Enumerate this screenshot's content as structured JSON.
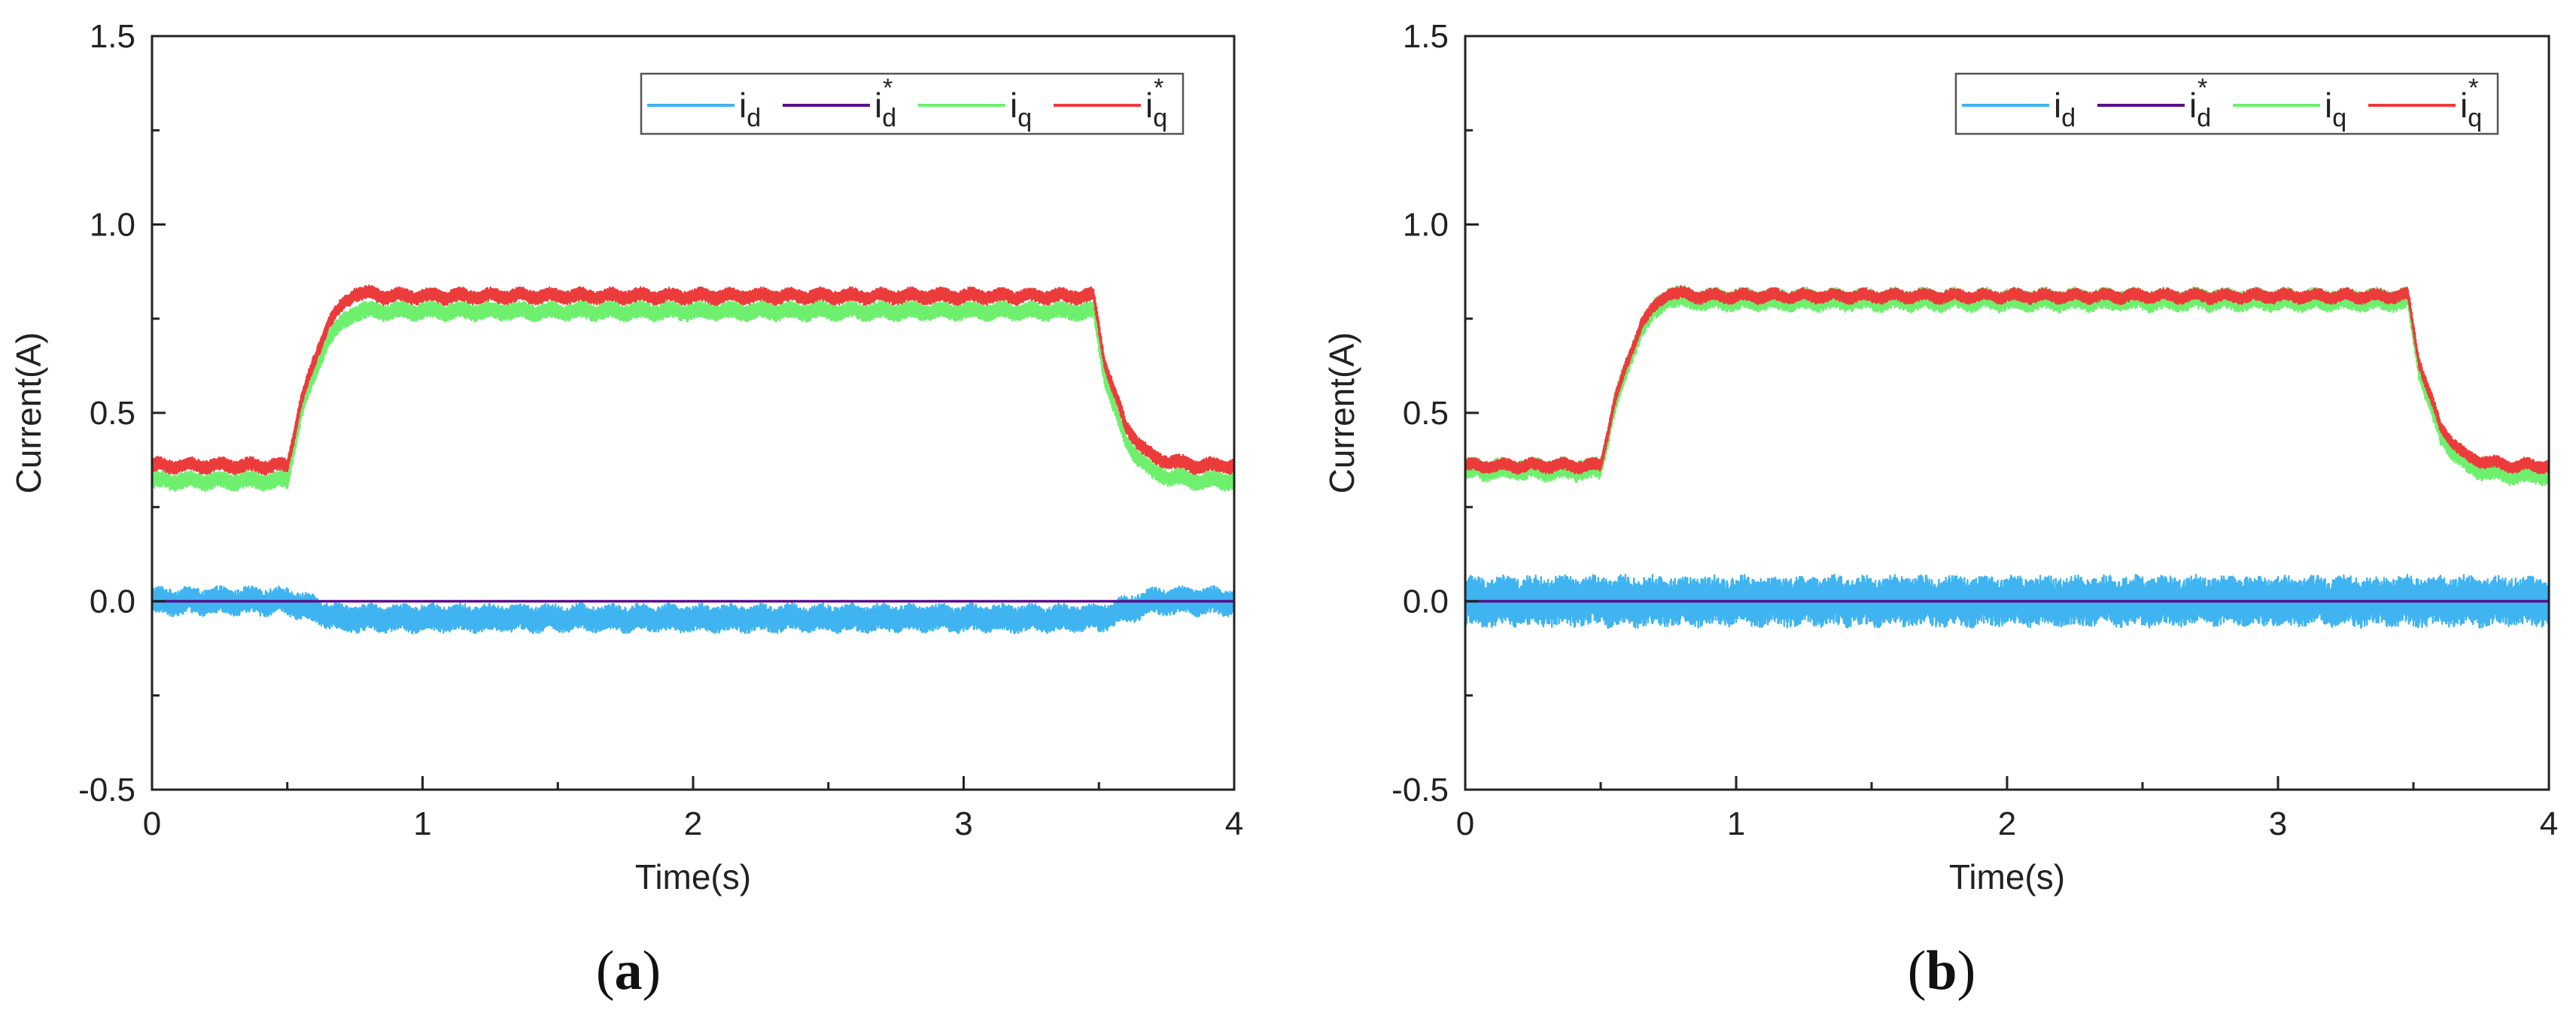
{
  "colors": {
    "id": "#3fb4f0",
    "id_ref": "#5b0f8a",
    "iq": "#6ef06e",
    "iq_ref": "#ec3b3b",
    "axis": "#222222"
  },
  "chart_data": [
    {
      "type": "line",
      "panel_label": {
        "open": "(",
        "letter": "a",
        "close": ")"
      },
      "title": "",
      "xlabel": "Time(s)",
      "ylabel": "Current(A)",
      "xlim": [
        0,
        4
      ],
      "ylim": [
        -0.5,
        1.5
      ],
      "xticks": [
        0,
        1,
        2,
        3,
        4
      ],
      "yticks": [
        -0.5,
        0.0,
        0.5,
        1.0,
        1.5
      ],
      "xtick_labels": [
        "0",
        "1",
        "2",
        "3",
        "4"
      ],
      "ytick_labels": [
        "-0.5",
        "0.0",
        "0.5",
        "1.0",
        "1.5"
      ],
      "legend_position": "top-right",
      "legend": [
        {
          "base": "i",
          "sub": "d",
          "sup": ""
        },
        {
          "base": "i",
          "sub": "d",
          "sup": "*"
        },
        {
          "base": "i",
          "sub": "q",
          "sup": ""
        },
        {
          "base": "i",
          "sub": "q",
          "sup": "*"
        }
      ],
      "series": [
        {
          "name": "i_d",
          "x": [
            0,
            0.5,
            0.7,
            3.5,
            3.7,
            4.0
          ],
          "values": [
            0.0,
            0.0,
            -0.045,
            -0.045,
            0.0,
            0.0
          ],
          "band": 0.035
        },
        {
          "name": "i_d*",
          "x": [
            0,
            4.0
          ],
          "values": [
            0.0,
            0.0
          ],
          "band": 0
        },
        {
          "name": "i_q",
          "x": [
            0,
            0.5,
            0.55,
            0.65,
            0.75,
            0.85,
            3.48,
            3.52,
            3.6,
            3.7,
            3.85,
            4.0
          ],
          "values": [
            0.32,
            0.32,
            0.5,
            0.7,
            0.77,
            0.77,
            0.77,
            0.6,
            0.42,
            0.34,
            0.32,
            0.32
          ],
          "band": 0.022
        },
        {
          "name": "i_q*",
          "x": [
            0,
            0.5,
            0.55,
            0.65,
            0.75,
            0.85,
            3.48,
            3.52,
            3.6,
            3.7,
            3.85,
            4.0
          ],
          "values": [
            0.36,
            0.36,
            0.53,
            0.74,
            0.82,
            0.81,
            0.81,
            0.64,
            0.46,
            0.38,
            0.36,
            0.36
          ],
          "band": 0.018
        }
      ]
    },
    {
      "type": "line",
      "panel_label": {
        "open": "(",
        "letter": "b",
        "close": ")"
      },
      "title": "",
      "xlabel": "Time(s)",
      "ylabel": "Current(A)",
      "xlim": [
        0,
        4
      ],
      "ylim": [
        -0.5,
        1.5
      ],
      "xticks": [
        0,
        1,
        2,
        3,
        4
      ],
      "yticks": [
        -0.5,
        0.0,
        0.5,
        1.0,
        1.5
      ],
      "xtick_labels": [
        "0",
        "1",
        "2",
        "3",
        "4"
      ],
      "ytick_labels": [
        "-0.5",
        "0.0",
        "0.5",
        "1.0",
        "1.5"
      ],
      "legend_position": "top-right",
      "legend": [
        {
          "base": "i",
          "sub": "d",
          "sup": ""
        },
        {
          "base": "i",
          "sub": "d",
          "sup": "*"
        },
        {
          "base": "i",
          "sub": "q",
          "sup": ""
        },
        {
          "base": "i",
          "sub": "q",
          "sup": "*"
        }
      ],
      "series": [
        {
          "name": "i_d",
          "x": [
            0,
            0.5,
            0.7,
            3.5,
            3.7,
            4.0
          ],
          "values": [
            0.0,
            0.0,
            0.0,
            0.0,
            0.0,
            0.0
          ],
          "band": 0.065
        },
        {
          "name": "i_d*",
          "x": [
            0,
            4.0
          ],
          "values": [
            0.0,
            0.0
          ],
          "band": 0
        },
        {
          "name": "i_q",
          "x": [
            0,
            0.5,
            0.55,
            0.65,
            0.75,
            0.85,
            3.48,
            3.52,
            3.6,
            3.7,
            3.85,
            4.0
          ],
          "values": [
            0.35,
            0.35,
            0.52,
            0.73,
            0.81,
            0.8,
            0.8,
            0.62,
            0.44,
            0.36,
            0.34,
            0.34
          ],
          "band": 0.028
        },
        {
          "name": "i_q*",
          "x": [
            0,
            0.5,
            0.55,
            0.65,
            0.75,
            0.85,
            3.48,
            3.52,
            3.6,
            3.7,
            3.85,
            4.0
          ],
          "values": [
            0.36,
            0.36,
            0.53,
            0.74,
            0.82,
            0.81,
            0.81,
            0.64,
            0.46,
            0.38,
            0.36,
            0.36
          ],
          "band": 0.016
        }
      ]
    }
  ]
}
